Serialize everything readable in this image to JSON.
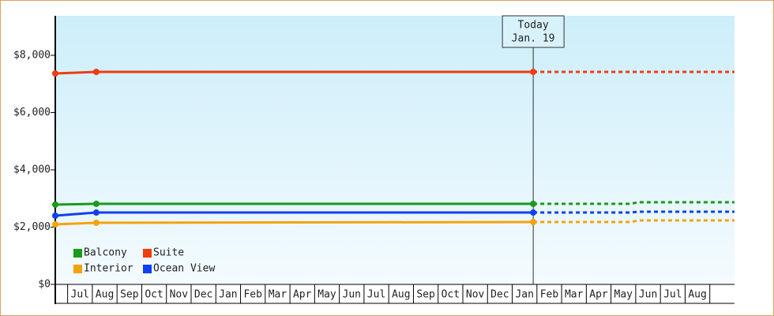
{
  "chart_data": {
    "type": "line",
    "categories": [
      "Jul",
      "Aug",
      "Sep",
      "Oct",
      "Nov",
      "Dec",
      "Jan",
      "Feb",
      "Mar",
      "Apr",
      "May",
      "Jun",
      "Jul",
      "Aug",
      "Sep",
      "Oct",
      "Nov",
      "Dec",
      "Jan",
      "Feb",
      "Mar",
      "Apr",
      "May",
      "Jun",
      "Jul",
      "Aug"
    ],
    "xlim": [
      0,
      27.5
    ],
    "ylim": [
      0,
      9380
    ],
    "yticks": [
      {
        "value": 0,
        "label": "$0"
      },
      {
        "value": 2000,
        "label": "$2,000"
      },
      {
        "value": 4000,
        "label": "$4,000"
      },
      {
        "value": 6000,
        "label": "$6,000"
      },
      {
        "value": 8000,
        "label": "$8,000"
      }
    ],
    "x": [
      0,
      1.66,
      19.35
    ],
    "forecast_x": [
      19.35,
      23.3,
      23.6,
      27.5
    ],
    "series": [
      {
        "name": "Balcony",
        "color": "#1a9a1a",
        "values": [
          2786,
          2814,
          2814
        ],
        "forecast": [
          2814,
          2814,
          2869,
          2869
        ]
      },
      {
        "name": "Suite",
        "color": "#f03c10",
        "values": [
          7366,
          7421,
          7421
        ],
        "forecast": [
          7421,
          7421,
          7421,
          7421
        ]
      },
      {
        "name": "Interior",
        "color": "#f5a30a",
        "values": [
          2097,
          2152,
          2179
        ],
        "forecast": [
          2179,
          2179,
          2234,
          2234
        ]
      },
      {
        "name": "Ocean View",
        "color": "#1040f0",
        "values": [
          2400,
          2510,
          2510
        ],
        "forecast": [
          2510,
          2510,
          2538,
          2538
        ]
      }
    ],
    "annotation": {
      "lines": [
        "Today",
        "Jan. 19"
      ],
      "x": 19.35
    }
  }
}
